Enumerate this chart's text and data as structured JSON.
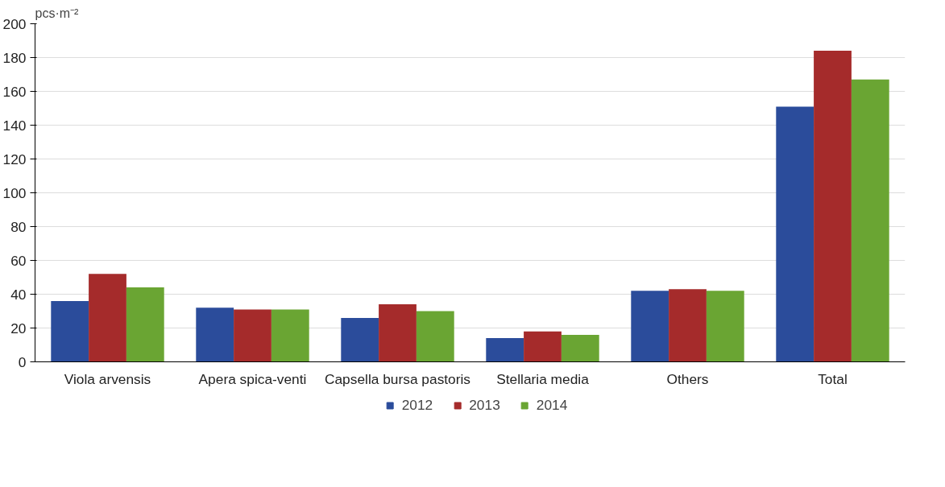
{
  "chart_data": {
    "type": "bar",
    "ylabel": "pcs·m⁻²",
    "categories": [
      "Viola arvensis",
      "Apera spica-venti",
      "Capsella bursa pastoris",
      "Stellaria media",
      "Others",
      "Total"
    ],
    "series": [
      {
        "name": "2012",
        "color": "#2b4c9b",
        "values": [
          36,
          32,
          26,
          14,
          42,
          151
        ]
      },
      {
        "name": "2013",
        "color": "#a52b2b",
        "values": [
          52,
          31,
          34,
          18,
          43,
          184
        ]
      },
      {
        "name": "2014",
        "color": "#6aa533",
        "values": [
          44,
          31,
          30,
          16,
          42,
          167
        ]
      }
    ],
    "ylim": [
      0,
      200
    ],
    "yticks": [
      0,
      20,
      40,
      60,
      80,
      100,
      120,
      140,
      160,
      180,
      200
    ],
    "grid": "y",
    "legend": "bottom"
  }
}
